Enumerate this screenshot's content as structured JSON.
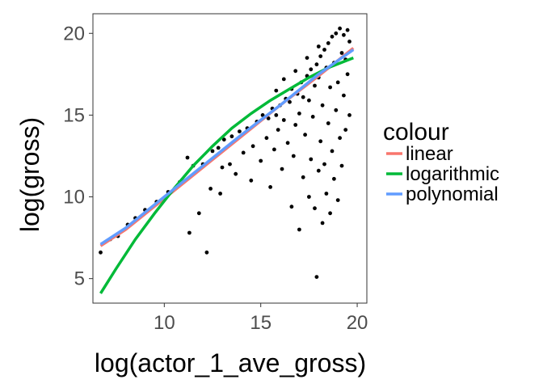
{
  "chart_data": {
    "type": "scatter",
    "title": "",
    "xlabel": "log(actor_1_ave_gross)",
    "ylabel": "log(gross)",
    "xlim": [
      6.3,
      20.5
    ],
    "ylim": [
      3.5,
      21.2
    ],
    "x_ticks": [
      10,
      15,
      20
    ],
    "y_ticks": [
      5,
      10,
      15,
      20
    ],
    "x_tick_labels": [
      "10",
      "15",
      "20"
    ],
    "y_tick_labels": [
      "5",
      "10",
      "15",
      "20"
    ],
    "grid": false,
    "legend": {
      "title": "colour",
      "position": "right",
      "entries": [
        "linear",
        "logarithmic",
        "polynomial"
      ]
    },
    "points_color": "#000000",
    "points_note": "thousands of movie points; dense cloud for x 15–19.6, y 13–20.4, sparse tail down to y≈5",
    "points": [
      [
        6.7,
        6.6
      ],
      [
        7.2,
        7.4
      ],
      [
        7.6,
        7.6
      ],
      [
        8.1,
        8.3
      ],
      [
        8.5,
        8.7
      ],
      [
        9.0,
        9.2
      ],
      [
        9.6,
        9.7
      ],
      [
        10.2,
        10.3
      ],
      [
        10.8,
        10.9
      ],
      [
        11.2,
        12.4
      ],
      [
        11.3,
        7.8
      ],
      [
        11.5,
        11.9
      ],
      [
        11.8,
        9.0
      ],
      [
        12.0,
        12.0
      ],
      [
        12.2,
        6.6
      ],
      [
        12.4,
        10.5
      ],
      [
        12.5,
        12.8
      ],
      [
        12.8,
        13.0
      ],
      [
        12.9,
        10.2
      ],
      [
        13.0,
        11.8
      ],
      [
        13.1,
        13.5
      ],
      [
        13.4,
        12.0
      ],
      [
        13.5,
        13.7
      ],
      [
        13.7,
        11.4
      ],
      [
        13.9,
        14.0
      ],
      [
        14.1,
        12.7
      ],
      [
        14.3,
        14.2
      ],
      [
        14.5,
        11.0
      ],
      [
        14.6,
        13.1
      ],
      [
        14.8,
        14.6
      ],
      [
        15.0,
        12.2
      ],
      [
        15.1,
        15.0
      ],
      [
        15.3,
        13.6
      ],
      [
        15.4,
        14.8
      ],
      [
        15.5,
        10.6
      ],
      [
        15.6,
        15.4
      ],
      [
        15.7,
        12.9
      ],
      [
        15.8,
        15.0
      ],
      [
        15.9,
        14.1
      ],
      [
        16.0,
        15.6
      ],
      [
        16.1,
        11.7
      ],
      [
        16.2,
        14.7
      ],
      [
        16.3,
        16.0
      ],
      [
        16.4,
        13.3
      ],
      [
        16.5,
        15.8
      ],
      [
        16.6,
        9.4
      ],
      [
        16.6,
        16.6
      ],
      [
        16.7,
        12.5
      ],
      [
        16.8,
        14.4
      ],
      [
        16.9,
        16.3
      ],
      [
        17.0,
        8.0
      ],
      [
        17.0,
        15.1
      ],
      [
        17.1,
        17.0
      ],
      [
        17.2,
        11.2
      ],
      [
        17.2,
        16.1
      ],
      [
        17.3,
        13.8
      ],
      [
        17.4,
        17.4
      ],
      [
        17.5,
        10.0
      ],
      [
        17.5,
        15.9
      ],
      [
        17.6,
        12.3
      ],
      [
        17.6,
        17.8
      ],
      [
        17.7,
        14.9
      ],
      [
        17.8,
        9.3
      ],
      [
        17.8,
        16.8
      ],
      [
        17.9,
        18.1
      ],
      [
        17.9,
        5.1
      ],
      [
        18.0,
        11.6
      ],
      [
        18.0,
        17.3
      ],
      [
        18.1,
        13.4
      ],
      [
        18.1,
        18.6
      ],
      [
        18.2,
        15.6
      ],
      [
        18.2,
        8.4
      ],
      [
        18.3,
        19.0
      ],
      [
        18.3,
        12.0
      ],
      [
        18.4,
        17.9
      ],
      [
        18.4,
        10.2
      ],
      [
        18.5,
        19.4
      ],
      [
        18.5,
        14.5
      ],
      [
        18.6,
        16.7
      ],
      [
        18.6,
        9.0
      ],
      [
        18.7,
        19.8
      ],
      [
        18.7,
        12.8
      ],
      [
        18.8,
        18.2
      ],
      [
        18.8,
        11.1
      ],
      [
        18.9,
        20.0
      ],
      [
        18.9,
        15.3
      ],
      [
        19.0,
        17.0
      ],
      [
        19.0,
        9.8
      ],
      [
        19.1,
        20.3
      ],
      [
        19.1,
        13.6
      ],
      [
        19.2,
        18.8
      ],
      [
        19.2,
        11.9
      ],
      [
        19.3,
        19.9
      ],
      [
        19.3,
        16.2
      ],
      [
        19.4,
        18.4
      ],
      [
        19.4,
        14.1
      ],
      [
        19.5,
        20.2
      ],
      [
        19.5,
        17.5
      ],
      [
        19.6,
        19.5
      ],
      [
        19.6,
        15.0
      ],
      [
        16.8,
        17.7
      ],
      [
        17.4,
        18.5
      ],
      [
        18.0,
        19.2
      ],
      [
        16.2,
        17.2
      ],
      [
        15.8,
        16.5
      ]
    ],
    "series": [
      {
        "name": "linear",
        "color": "#F8766D",
        "x": [
          6.7,
          8.0,
          10.0,
          12.0,
          14.0,
          16.0,
          18.0,
          19.8
        ],
        "y": [
          7.0,
          8.0,
          9.9,
          11.8,
          13.7,
          15.6,
          17.4,
          19.1
        ]
      },
      {
        "name": "logarithmic",
        "color": "#00BA38",
        "x": [
          6.7,
          7.5,
          8.5,
          9.5,
          10.5,
          11.5,
          12.5,
          13.5,
          14.5,
          15.5,
          16.5,
          17.5,
          18.5,
          19.8
        ],
        "y": [
          4.1,
          5.6,
          7.4,
          9.0,
          10.5,
          11.9,
          13.1,
          14.2,
          15.1,
          15.9,
          16.6,
          17.3,
          17.9,
          18.5
        ]
      },
      {
        "name": "polynomial",
        "color": "#619CFF",
        "x": [
          6.7,
          8.0,
          10.0,
          12.0,
          14.0,
          16.0,
          18.0,
          19.8
        ],
        "y": [
          7.1,
          8.1,
          10.0,
          11.9,
          13.8,
          15.6,
          17.5,
          19.0
        ]
      }
    ]
  }
}
